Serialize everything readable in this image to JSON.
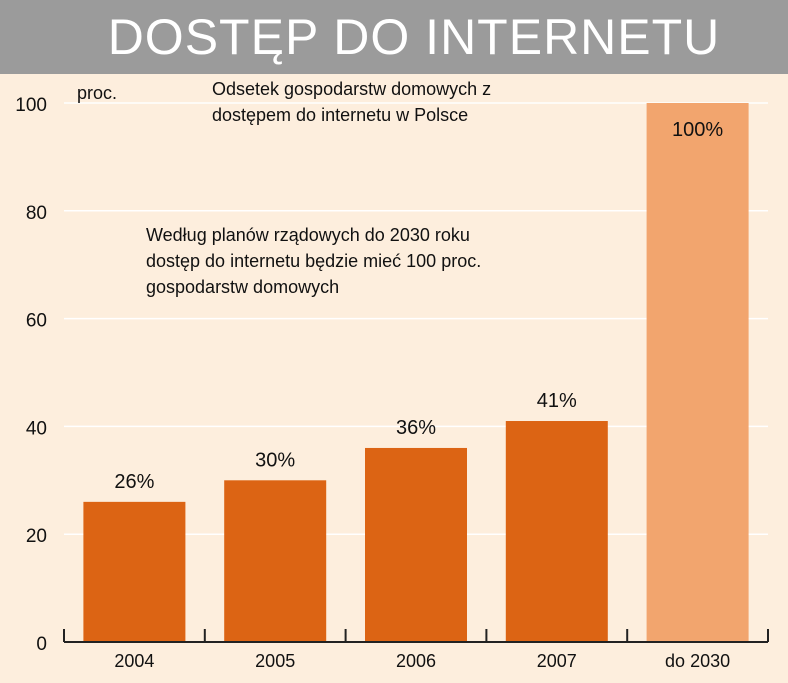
{
  "title": "DOSTĘP DO INTERNETU",
  "colors": {
    "background": "#fdeedd",
    "header": "#9b9b9b",
    "bar": "#dc6414",
    "bar_highlight": "#f2a56e",
    "grid": "#ffffff"
  },
  "chart_data": {
    "type": "bar",
    "title": "Odsetek gospodarstw domowych z dostępem do internetu w Polsce",
    "title_lines": [
      "Odsetek gospodarstw domowych z",
      "dostępem do internetu w Polsce"
    ],
    "ylabel": "proc.",
    "xlabel": "",
    "ylim": [
      0,
      100
    ],
    "yticks": [
      "0",
      "20",
      "40",
      "60",
      "80",
      "100"
    ],
    "categories": [
      "2004",
      "2005",
      "2006",
      "2007",
      "do 2030"
    ],
    "values": [
      26,
      30,
      36,
      41,
      100
    ],
    "labels": [
      "26%",
      "30%",
      "36%",
      "41%",
      "100%"
    ],
    "highlight": [
      false,
      false,
      false,
      false,
      true
    ],
    "annotation_lines": [
      "Według planów rządowych do 2030 roku",
      "dostęp do internetu będzie mieć 100 proc.",
      "gospodarstw domowych"
    ],
    "grid": true
  }
}
